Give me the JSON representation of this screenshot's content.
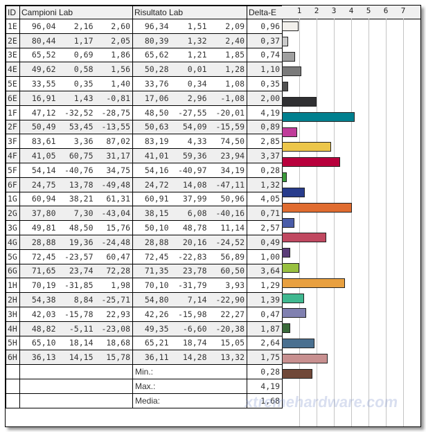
{
  "headers": {
    "id": "ID",
    "campioni": "Campioni Lab",
    "risultato": "Risultato Lab",
    "delta": "Delta-E"
  },
  "axis_ticks": [
    "1",
    "2",
    "3",
    "4",
    "5",
    "6",
    "7"
  ],
  "rows": [
    {
      "id": "1E",
      "c": [
        "96,04",
        "2,16",
        "2,60"
      ],
      "r": [
        "96,34",
        "1,51",
        "2,09"
      ],
      "de": "0,96",
      "value": 0.96,
      "color": "#f2f0ec"
    },
    {
      "id": "2E",
      "c": [
        "80,44",
        "1,17",
        "2,05"
      ],
      "r": [
        "80,39",
        "1,32",
        "2,40"
      ],
      "de": "0,37",
      "value": 0.37,
      "color": "#cacaca"
    },
    {
      "id": "3E",
      "c": [
        "65,52",
        "0,69",
        "1,86"
      ],
      "r": [
        "65,62",
        "1,21",
        "1,85"
      ],
      "de": "0,74",
      "value": 0.74,
      "color": "#a0a0a0"
    },
    {
      "id": "4E",
      "c": [
        "49,62",
        "0,58",
        "1,56"
      ],
      "r": [
        "50,28",
        "0,01",
        "1,28"
      ],
      "de": "1,10",
      "value": 1.1,
      "color": "#7a7a7a"
    },
    {
      "id": "5E",
      "c": [
        "33,55",
        "0,35",
        "1,40"
      ],
      "r": [
        "33,76",
        "0,34",
        "1,08"
      ],
      "de": "0,35",
      "value": 0.35,
      "color": "#505050"
    },
    {
      "id": "6E",
      "c": [
        "16,91",
        "1,43",
        "-0,81"
      ],
      "r": [
        "17,06",
        "2,96",
        "-1,08"
      ],
      "de": "2,00",
      "value": 2.0,
      "color": "#303032"
    },
    {
      "id": "1F",
      "c": [
        "47,12",
        "-32,52",
        "-28,75"
      ],
      "r": [
        "48,50",
        "-27,55",
        "-20,01"
      ],
      "de": "4,19",
      "value": 4.19,
      "color": "#00808f"
    },
    {
      "id": "2F",
      "c": [
        "50,49",
        "53,45",
        "-13,55"
      ],
      "r": [
        "50,63",
        "54,09",
        "-15,59"
      ],
      "de": "0,89",
      "value": 0.89,
      "color": "#c03c9a"
    },
    {
      "id": "3F",
      "c": [
        "83,61",
        "3,36",
        "87,02"
      ],
      "r": [
        "83,19",
        "4,33",
        "74,50"
      ],
      "de": "2,85",
      "value": 2.85,
      "color": "#ecc64a"
    },
    {
      "id": "4F",
      "c": [
        "41,05",
        "60,75",
        "31,17"
      ],
      "r": [
        "41,01",
        "59,36",
        "23,94"
      ],
      "de": "3,37",
      "value": 3.37,
      "color": "#b8003c"
    },
    {
      "id": "5F",
      "c": [
        "54,14",
        "-40,76",
        "34,75"
      ],
      "r": [
        "54,16",
        "-40,97",
        "34,19"
      ],
      "de": "0,28",
      "value": 0.28,
      "color": "#3a9a3a"
    },
    {
      "id": "6F",
      "c": [
        "24,75",
        "13,78",
        "-49,48"
      ],
      "r": [
        "24,72",
        "14,08",
        "-47,11"
      ],
      "de": "1,32",
      "value": 1.32,
      "color": "#283c8c"
    },
    {
      "id": "1G",
      "c": [
        "60,94",
        "38,21",
        "61,31"
      ],
      "r": [
        "60,91",
        "37,99",
        "50,96"
      ],
      "de": "4,05",
      "value": 4.05,
      "color": "#e06c30"
    },
    {
      "id": "2G",
      "c": [
        "37,80",
        "7,30",
        "-43,04"
      ],
      "r": [
        "38,15",
        "6,08",
        "-40,16"
      ],
      "de": "0,71",
      "value": 0.71,
      "color": "#4a5ca8"
    },
    {
      "id": "3G",
      "c": [
        "49,81",
        "48,50",
        "15,76"
      ],
      "r": [
        "50,10",
        "48,78",
        "11,14"
      ],
      "de": "2,57",
      "value": 2.57,
      "color": "#c04860"
    },
    {
      "id": "4G",
      "c": [
        "28,88",
        "19,36",
        "-24,48"
      ],
      "r": [
        "28,88",
        "20,16",
        "-24,52"
      ],
      "de": "0,49",
      "value": 0.49,
      "color": "#5a3c78"
    },
    {
      "id": "5G",
      "c": [
        "72,45",
        "-23,57",
        "60,47"
      ],
      "r": [
        "72,45",
        "-22,83",
        "56,89"
      ],
      "de": "1,00",
      "value": 1.0,
      "color": "#98c040"
    },
    {
      "id": "6G",
      "c": [
        "71,65",
        "23,74",
        "72,28"
      ],
      "r": [
        "71,35",
        "23,78",
        "60,50"
      ],
      "de": "3,64",
      "value": 3.64,
      "color": "#e8a040"
    },
    {
      "id": "1H",
      "c": [
        "70,19",
        "-31,85",
        "1,98"
      ],
      "r": [
        "70,10",
        "-31,79",
        "3,93"
      ],
      "de": "1,29",
      "value": 1.29,
      "color": "#40b890"
    },
    {
      "id": "2H",
      "c": [
        "54,38",
        "8,84",
        "-25,71"
      ],
      "r": [
        "54,80",
        "7,14",
        "-22,90"
      ],
      "de": "1,39",
      "value": 1.39,
      "color": "#8080b0"
    },
    {
      "id": "3H",
      "c": [
        "42,03",
        "-15,78",
        "22,93"
      ],
      "r": [
        "42,26",
        "-15,98",
        "22,27"
      ],
      "de": "0,47",
      "value": 0.47,
      "color": "#3a6a3a"
    },
    {
      "id": "4H",
      "c": [
        "48,82",
        "-5,11",
        "-23,08"
      ],
      "r": [
        "49,35",
        "-6,60",
        "-20,38"
      ],
      "de": "1,87",
      "value": 1.87,
      "color": "#4a7090"
    },
    {
      "id": "5H",
      "c": [
        "65,10",
        "18,14",
        "18,68"
      ],
      "r": [
        "65,21",
        "18,74",
        "15,05"
      ],
      "de": "2,64",
      "value": 2.64,
      "color": "#c89090"
    },
    {
      "id": "6H",
      "c": [
        "36,13",
        "14,15",
        "15,78"
      ],
      "r": [
        "36,11",
        "14,28",
        "13,32"
      ],
      "de": "1,75",
      "value": 1.75,
      "color": "#704838"
    }
  ],
  "summary": [
    {
      "label": "Min.:",
      "value": "0,28"
    },
    {
      "label": "Max.:",
      "value": "4,19"
    },
    {
      "label": "Media:",
      "value": "1,68"
    }
  ],
  "watermark": "xtremehardware.com"
}
